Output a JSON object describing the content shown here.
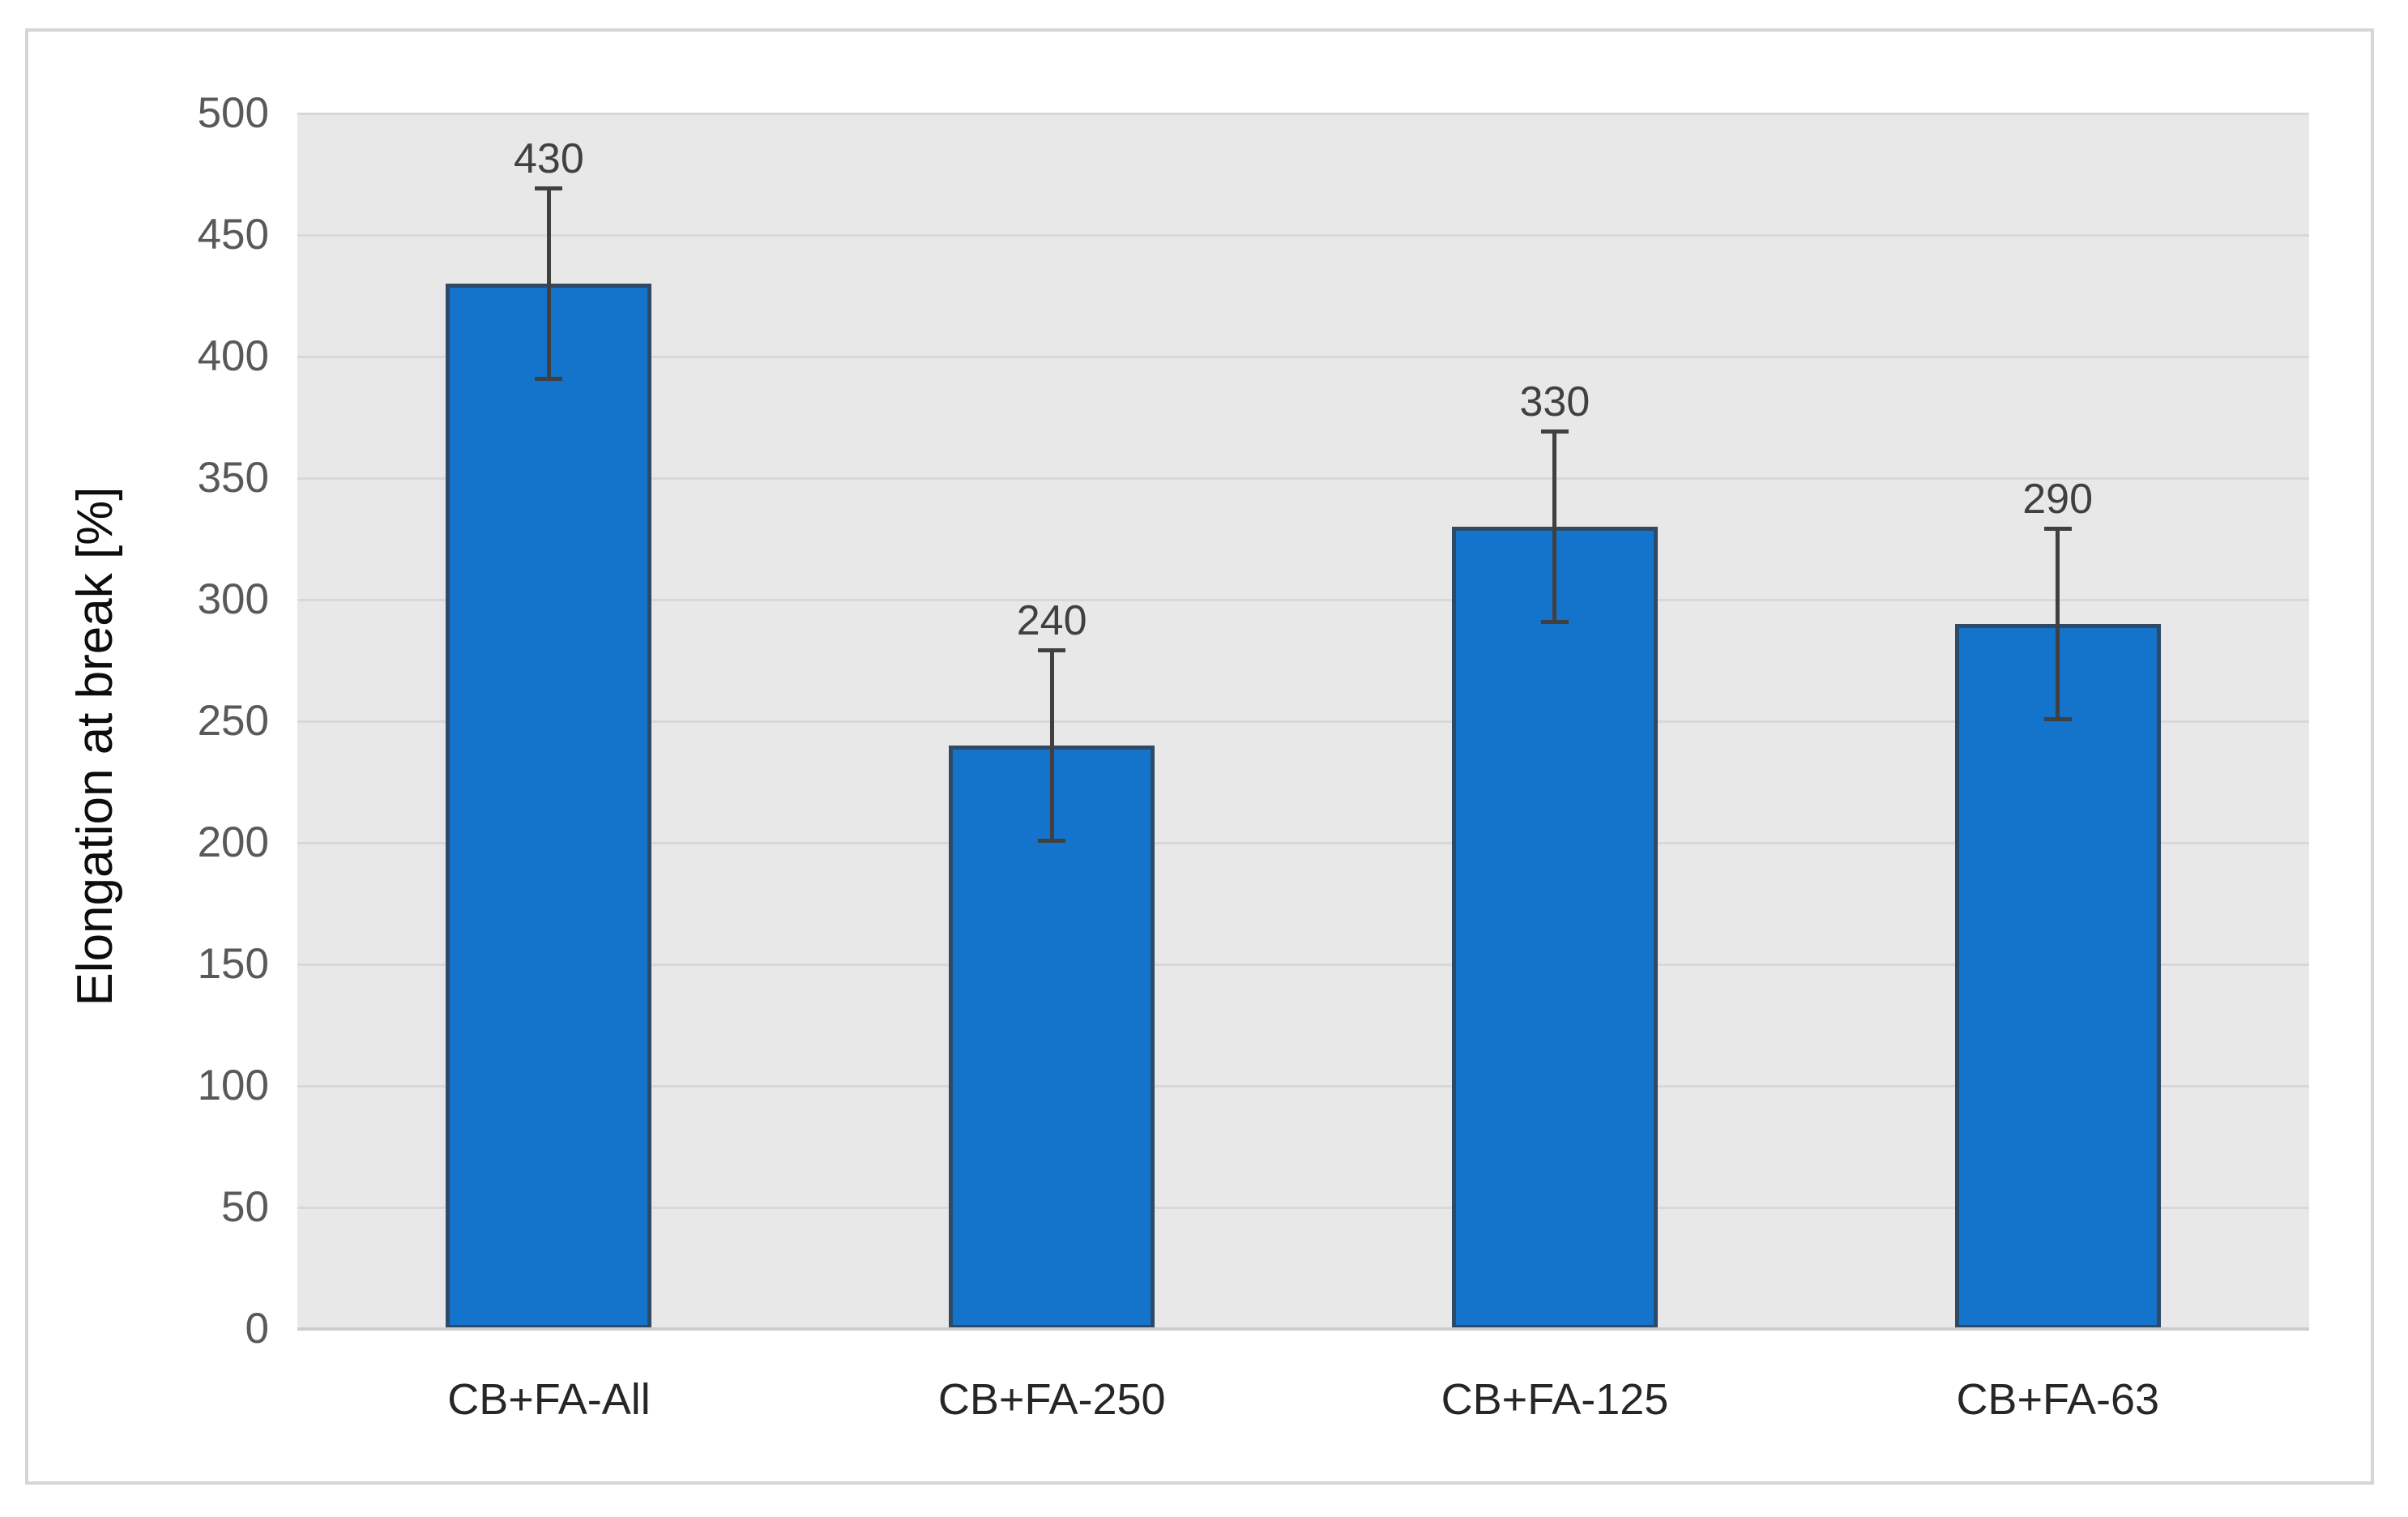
{
  "chart_data": {
    "type": "bar",
    "title": "",
    "categories": [
      "CB+FA-All",
      "CB+FA-250",
      "CB+FA-125",
      "CB+FA-63"
    ],
    "values": [
      430,
      240,
      330,
      290
    ],
    "data_labels": [
      "430",
      "240",
      "330",
      "290"
    ],
    "error_bars": {
      "plus": [
        40,
        40,
        40,
        40
      ],
      "minus": [
        40,
        40,
        40,
        40
      ]
    },
    "xlabel": "",
    "ylabel": "Elongation at break [%]",
    "ylim": [
      0,
      500
    ],
    "yticks": [
      0,
      50,
      100,
      150,
      200,
      250,
      300,
      350,
      400,
      450,
      500
    ],
    "grid": "horizontal",
    "legend": "none"
  },
  "style": {
    "plot_bg": "#e8e8e8",
    "gridline_color": "#d8d8d8",
    "axis_line_color": "#cdcdcd",
    "bar_fill": "#1473ca",
    "bar_border": "#2f4a66",
    "error_bar_color": "#404040",
    "data_label_color": "#404040",
    "ytick_color": "#595959",
    "xtick_color": "#262626",
    "ylabel_color": "#0d0d0d",
    "frame_border_color": "#d6d6d6",
    "canvas_bg": "#ffffff"
  }
}
